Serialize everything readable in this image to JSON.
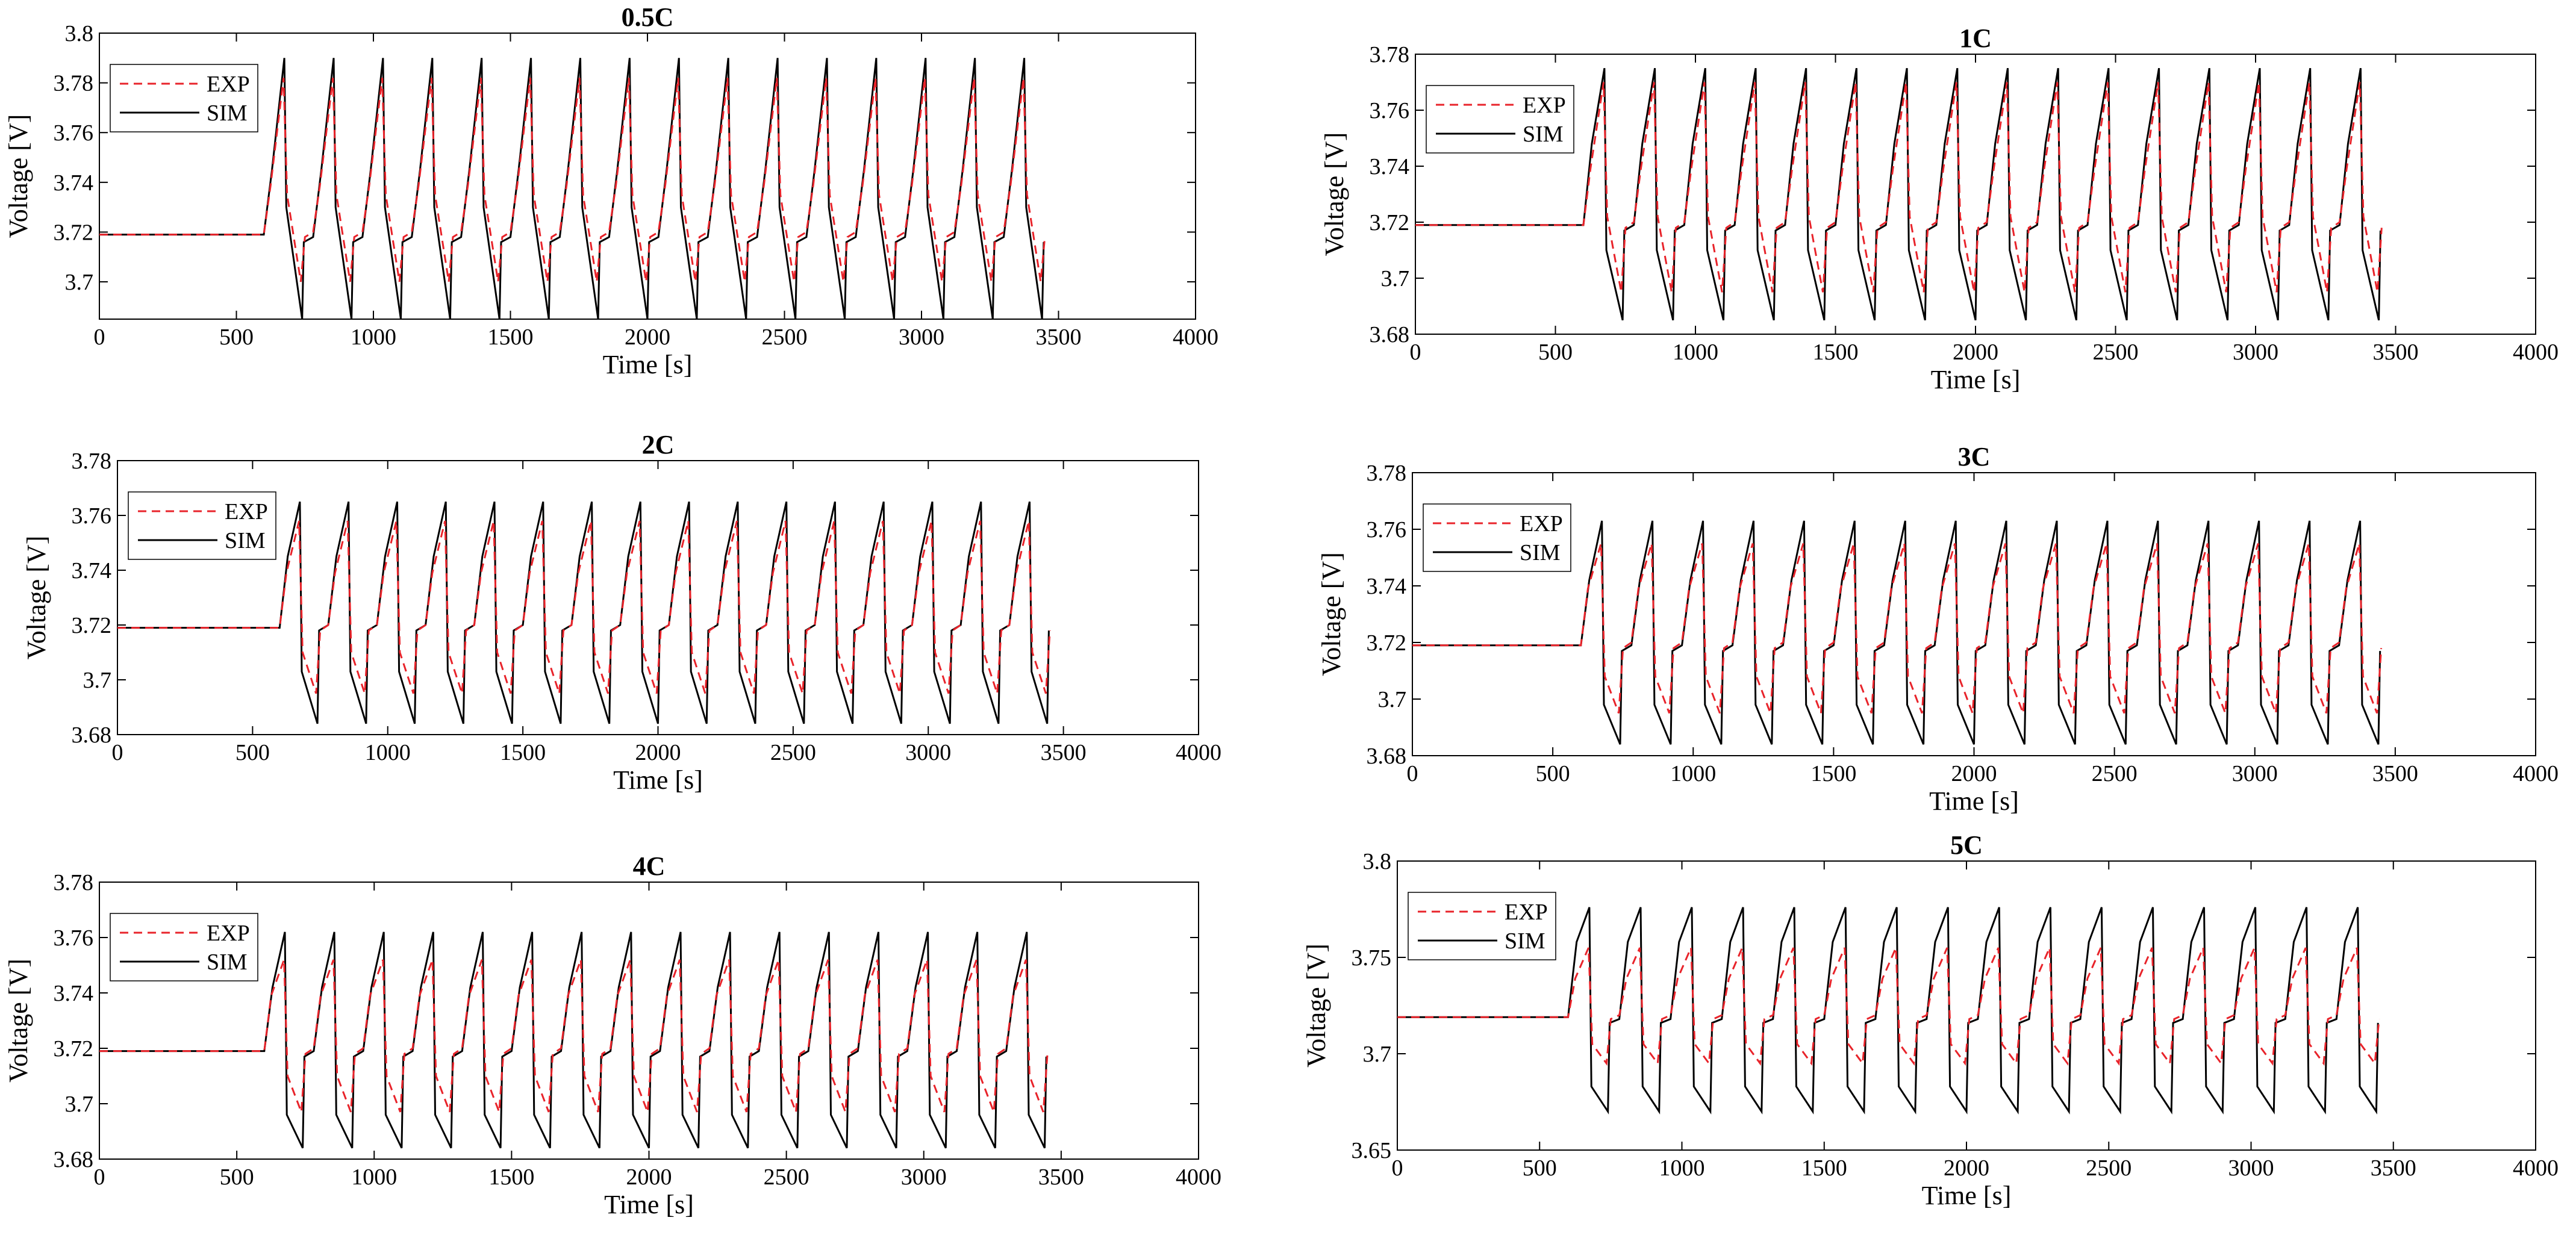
{
  "figure": {
    "legend_entries": [
      "EXP",
      "SIM"
    ],
    "series_colors": {
      "EXP": "#e8232a",
      "SIM": "#000000"
    },
    "xlabel": "Time [s]",
    "ylabel": "Voltage [V]"
  },
  "chart_data": [
    {
      "type": "line",
      "title": "0.5C",
      "xlabel": "Time [s]",
      "ylabel": "Voltage [V]",
      "xlim": [
        0,
        4000
      ],
      "ylim": [
        3.685,
        3.8
      ],
      "xticks": [
        "0",
        "500",
        "1000",
        "1500",
        "2000",
        "2500",
        "3000",
        "3500",
        "4000"
      ],
      "yticks": [
        "3.7",
        "3.72",
        "3.74",
        "3.76",
        "3.78",
        "3.8"
      ],
      "ytick_values": [
        3.7,
        3.72,
        3.74,
        3.76,
        3.78,
        3.8
      ],
      "legend": "top-left",
      "pulse_cycle": {
        "rest_voltage": 3.719,
        "rest_until": 600,
        "period": 180,
        "cycles": 16,
        "end_time": 3600,
        "sim": {
          "rise_to": 3.745,
          "peak": 3.79,
          "drop_to": 3.73,
          "low": 3.685,
          "plateau": 3.716
        },
        "exp": {
          "peak": 3.782,
          "drop_to": 3.735,
          "low": 3.7,
          "plateau": 3.718
        }
      },
      "series": [
        {
          "name": "EXP"
        },
        {
          "name": "SIM"
        }
      ]
    },
    {
      "type": "line",
      "title": "1C",
      "xlabel": "Time [s]",
      "ylabel": "Voltage [V]",
      "xlim": [
        0,
        4000
      ],
      "ylim": [
        3.68,
        3.78
      ],
      "xticks": [
        "0",
        "500",
        "1000",
        "1500",
        "2000",
        "2500",
        "3000",
        "3500",
        "4000"
      ],
      "yticks": [
        "3.68",
        "3.7",
        "3.72",
        "3.74",
        "3.76",
        "3.78"
      ],
      "ytick_values": [
        3.68,
        3.7,
        3.72,
        3.74,
        3.76,
        3.78
      ],
      "legend": "top-left",
      "pulse_cycle": {
        "rest_voltage": 3.719,
        "rest_until": 600,
        "period": 180,
        "cycles": 16,
        "end_time": 3600,
        "sim": {
          "rise_to": 3.748,
          "peak": 3.775,
          "drop_to": 3.71,
          "low": 3.685,
          "plateau": 3.717
        },
        "exp": {
          "peak": 3.77,
          "drop_to": 3.722,
          "low": 3.695,
          "plateau": 3.718
        }
      },
      "series": [
        {
          "name": "EXP"
        },
        {
          "name": "SIM"
        }
      ]
    },
    {
      "type": "line",
      "title": "2C",
      "xlabel": "Time [s]",
      "ylabel": "Voltage [V]",
      "xlim": [
        0,
        4000
      ],
      "ylim": [
        3.68,
        3.78
      ],
      "xticks": [
        "0",
        "500",
        "1000",
        "1500",
        "2000",
        "2500",
        "3000",
        "3500",
        "4000"
      ],
      "yticks": [
        "3.68",
        "3.7",
        "3.72",
        "3.74",
        "3.76",
        "3.78"
      ],
      "ytick_values": [
        3.68,
        3.7,
        3.72,
        3.74,
        3.76,
        3.78
      ],
      "legend": "top-left",
      "pulse_cycle": {
        "rest_voltage": 3.719,
        "rest_until": 600,
        "period": 180,
        "cycles": 16,
        "end_time": 3600,
        "sim": {
          "rise_to": 3.745,
          "peak": 3.765,
          "drop_to": 3.703,
          "low": 3.684,
          "plateau": 3.718
        },
        "exp": {
          "peak": 3.758,
          "drop_to": 3.71,
          "low": 3.695,
          "plateau": 3.718
        }
      },
      "series": [
        {
          "name": "EXP"
        },
        {
          "name": "SIM"
        }
      ]
    },
    {
      "type": "line",
      "title": "3C",
      "xlabel": "Time [s]",
      "ylabel": "Voltage [V]",
      "xlim": [
        0,
        4000
      ],
      "ylim": [
        3.68,
        3.78
      ],
      "xticks": [
        "0",
        "500",
        "1000",
        "1500",
        "2000",
        "2500",
        "3000",
        "3500",
        "4000"
      ],
      "yticks": [
        "3.68",
        "3.7",
        "3.72",
        "3.74",
        "3.76",
        "3.78"
      ],
      "ytick_values": [
        3.68,
        3.7,
        3.72,
        3.74,
        3.76,
        3.78
      ],
      "legend": "top-left",
      "pulse_cycle": {
        "rest_voltage": 3.719,
        "rest_until": 600,
        "period": 180,
        "cycles": 16,
        "end_time": 3600,
        "sim": {
          "rise_to": 3.742,
          "peak": 3.763,
          "drop_to": 3.698,
          "low": 3.684,
          "plateau": 3.717
        },
        "exp": {
          "peak": 3.755,
          "drop_to": 3.708,
          "low": 3.695,
          "plateau": 3.718
        }
      },
      "series": [
        {
          "name": "EXP"
        },
        {
          "name": "SIM"
        }
      ]
    },
    {
      "type": "line",
      "title": "4C",
      "xlabel": "Time [s]",
      "ylabel": "Voltage [V]",
      "xlim": [
        0,
        4000
      ],
      "ylim": [
        3.68,
        3.78
      ],
      "xticks": [
        "0",
        "500",
        "1000",
        "1500",
        "2000",
        "2500",
        "3000",
        "3500",
        "4000"
      ],
      "yticks": [
        "3.68",
        "3.7",
        "3.72",
        "3.74",
        "3.76",
        "3.78"
      ],
      "ytick_values": [
        3.68,
        3.7,
        3.72,
        3.74,
        3.76,
        3.78
      ],
      "legend": "top-left",
      "pulse_cycle": {
        "rest_voltage": 3.719,
        "rest_until": 600,
        "period": 180,
        "cycles": 16,
        "end_time": 3600,
        "sim": {
          "rise_to": 3.742,
          "peak": 3.762,
          "drop_to": 3.696,
          "low": 3.684,
          "plateau": 3.717
        },
        "exp": {
          "peak": 3.752,
          "drop_to": 3.71,
          "low": 3.697,
          "plateau": 3.718
        }
      },
      "series": [
        {
          "name": "EXP"
        },
        {
          "name": "SIM"
        }
      ]
    },
    {
      "type": "line",
      "title": "5C",
      "xlabel": "Time [s]",
      "ylabel": "Voltage [V]",
      "xlim": [
        0,
        4000
      ],
      "ylim": [
        3.65,
        3.8
      ],
      "xticks": [
        "0",
        "500",
        "1000",
        "1500",
        "2000",
        "2500",
        "3000",
        "3500",
        "4000"
      ],
      "yticks": [
        "3.65",
        "3.7",
        "3.75",
        "3.8"
      ],
      "ytick_values": [
        3.65,
        3.7,
        3.75,
        3.8
      ],
      "legend": "top-left",
      "pulse_cycle": {
        "rest_voltage": 3.719,
        "rest_until": 600,
        "period": 180,
        "cycles": 16,
        "end_time": 3600,
        "sim": {
          "rise_to": 3.758,
          "peak": 3.776,
          "drop_to": 3.683,
          "low": 3.67,
          "plateau": 3.716
        },
        "exp": {
          "peak": 3.755,
          "drop_to": 3.705,
          "low": 3.695,
          "plateau": 3.718
        }
      },
      "series": [
        {
          "name": "EXP"
        },
        {
          "name": "SIM"
        }
      ]
    }
  ]
}
